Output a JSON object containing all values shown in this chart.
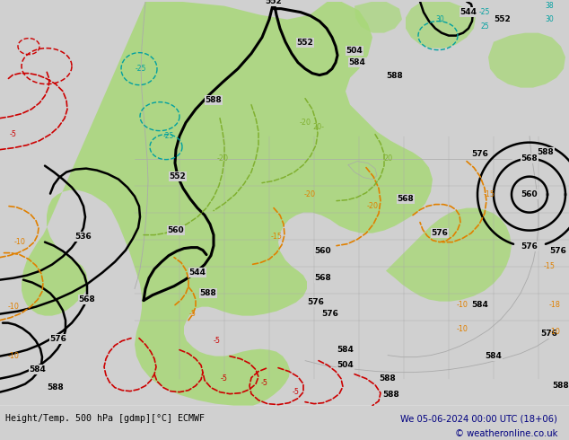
{
  "title_left": "Height/Temp. 500 hPa [gdmp][°C] ECMWF",
  "title_right": "We 05-06-2024 00:00 UTC (18+06)",
  "copyright": "© weatheronline.co.uk",
  "bg_color": "#d0d0d0",
  "green_color": "#a8d878",
  "gray_land": "#c0c0c0",
  "title_color": "#000080",
  "black": "#000000",
  "orange": "#e08000",
  "teal": "#00a0a0",
  "lime": "#80b030",
  "red": "#cc0000"
}
